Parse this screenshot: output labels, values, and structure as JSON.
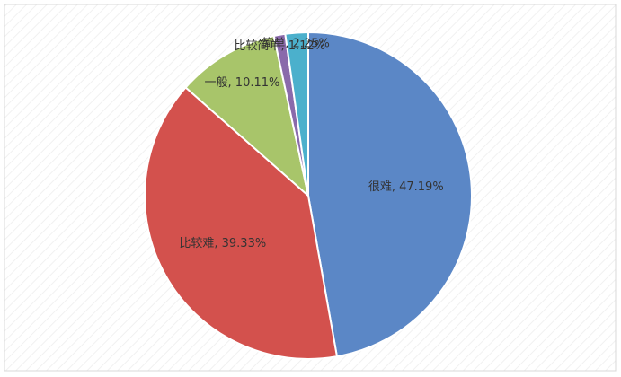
{
  "chart_data": {
    "type": "pie",
    "values": [
      47.19,
      39.33,
      10.11,
      1.12,
      2.25
    ],
    "value_labels": [
      "很难, 47.19%",
      "比较难, 39.33%",
      "一般, 10.11%",
      "比较简单, 1.12%",
      "简单, 2.25%"
    ],
    "colors": [
      "#5b87c6",
      "#d3514d",
      "#a8c56a",
      "#8a6aab",
      "#4bb0cc"
    ]
  }
}
